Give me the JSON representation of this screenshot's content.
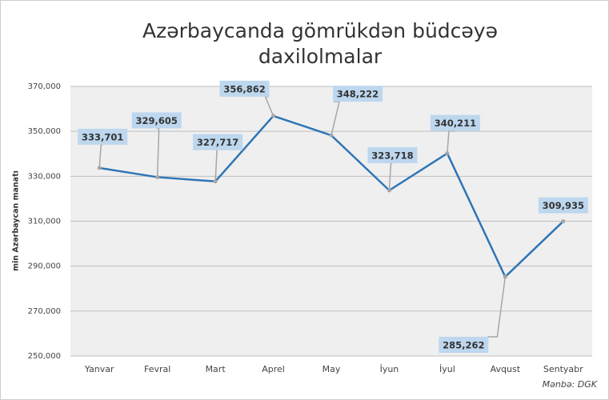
{
  "chart_data": {
    "type": "line",
    "title": [
      "Azərbaycanda gömrükdən büdcəyə",
      "daxilolmalar"
    ],
    "y_label": "min Azərbaycan manatı",
    "source": "Mənbə: DGK",
    "categories": [
      "Yanvar",
      "Fevral",
      "Mart",
      "Aprel",
      "May",
      "İyun",
      "İyul",
      "Avqust",
      "Sentyabr"
    ],
    "series": [
      {
        "name": "Daxilolmalar",
        "color": "#2e75b6",
        "values": [
          333701,
          329605,
          327717,
          356862,
          348222,
          323718,
          340211,
          285262,
          309935
        ],
        "value_labels": [
          "333,701",
          "329,605",
          "327,717",
          "356,862",
          "348,222",
          "323,718",
          "340,211",
          "285,262",
          "309,935"
        ]
      }
    ],
    "ylim": [
      250000,
      370000
    ],
    "yticks": [
      {
        "value": 250000,
        "label": "250,000"
      },
      {
        "value": 270000,
        "label": "270,000"
      },
      {
        "value": 290000,
        "label": "290,000"
      },
      {
        "value": 310000,
        "label": "310,000"
      },
      {
        "value": 330000,
        "label": "330,000"
      },
      {
        "value": 350000,
        "label": "350,000"
      },
      {
        "value": 370000,
        "label": "370,000"
      }
    ],
    "grid": true
  }
}
